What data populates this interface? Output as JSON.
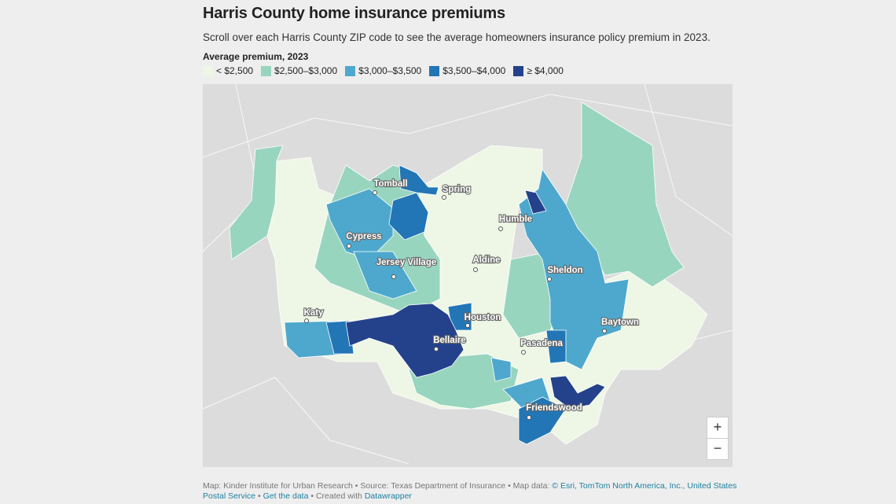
{
  "header": {
    "title": "Harris County home insurance premiums",
    "subtitle": "Scroll over each Harris County ZIP code to see the average homeowners insurance policy premium in 2023."
  },
  "legend": {
    "title": "Average premium, 2023",
    "items": [
      {
        "label": "< $2,500",
        "color": "#eef7e6"
      },
      {
        "label": "$2,500–$3,000",
        "color": "#98d5bf"
      },
      {
        "label": "$3,000–$3,500",
        "color": "#4ea8cd"
      },
      {
        "label": "$3,500–$4,000",
        "color": "#2276b6"
      },
      {
        "label": "≥ $4,000",
        "color": "#24418b"
      }
    ]
  },
  "map": {
    "places": [
      {
        "label": "Tomball",
        "dot": [
          477,
          245
        ],
        "at": [
          497,
          233
        ]
      },
      {
        "label": "Spring",
        "dot": [
          565,
          251
        ],
        "at": [
          581,
          240
        ]
      },
      {
        "label": "Humble",
        "dot": [
          637,
          291
        ],
        "at": [
          656,
          278
        ]
      },
      {
        "label": "Cypress",
        "dot": [
          444,
          313
        ],
        "at": [
          463,
          300
        ]
      },
      {
        "label": "Jersey Village",
        "dot": [
          501,
          352
        ],
        "at": [
          517,
          333
        ]
      },
      {
        "label": "Aldine",
        "dot": [
          605,
          343
        ],
        "at": [
          619,
          330
        ]
      },
      {
        "label": "Sheldon",
        "dot": [
          699,
          355
        ],
        "at": [
          719,
          343
        ]
      },
      {
        "label": "Houston",
        "dot": [
          595,
          414
        ],
        "at": [
          614,
          403
        ]
      },
      {
        "label": "Katy",
        "dot": [
          390,
          408
        ],
        "at": [
          399,
          397
        ]
      },
      {
        "label": "Bellaire",
        "dot": [
          555,
          444
        ],
        "at": [
          572,
          432
        ]
      },
      {
        "label": "Baytown",
        "dot": [
          769,
          421
        ],
        "at": [
          789,
          409
        ]
      },
      {
        "label": "Pasadena",
        "dot": [
          666,
          448
        ],
        "at": [
          689,
          436
        ]
      },
      {
        "label": "Friendswood",
        "dot": [
          673,
          531
        ],
        "at": [
          705,
          518
        ]
      }
    ],
    "zoom_in": "+",
    "zoom_out": "−"
  },
  "footer": {
    "segments": [
      {
        "text": "Map: Kinder Institute for Urban Research • Source: Texas Department of Insurance • Map data: ",
        "link": false
      },
      {
        "text": "© Esri, TomTom North America, Inc., United States Postal Service",
        "link": true
      },
      {
        "text": " • ",
        "link": false
      },
      {
        "text": "Get the data",
        "link": true
      },
      {
        "text": " • Created with ",
        "link": false
      },
      {
        "text": "Datawrapper",
        "link": true
      }
    ]
  }
}
